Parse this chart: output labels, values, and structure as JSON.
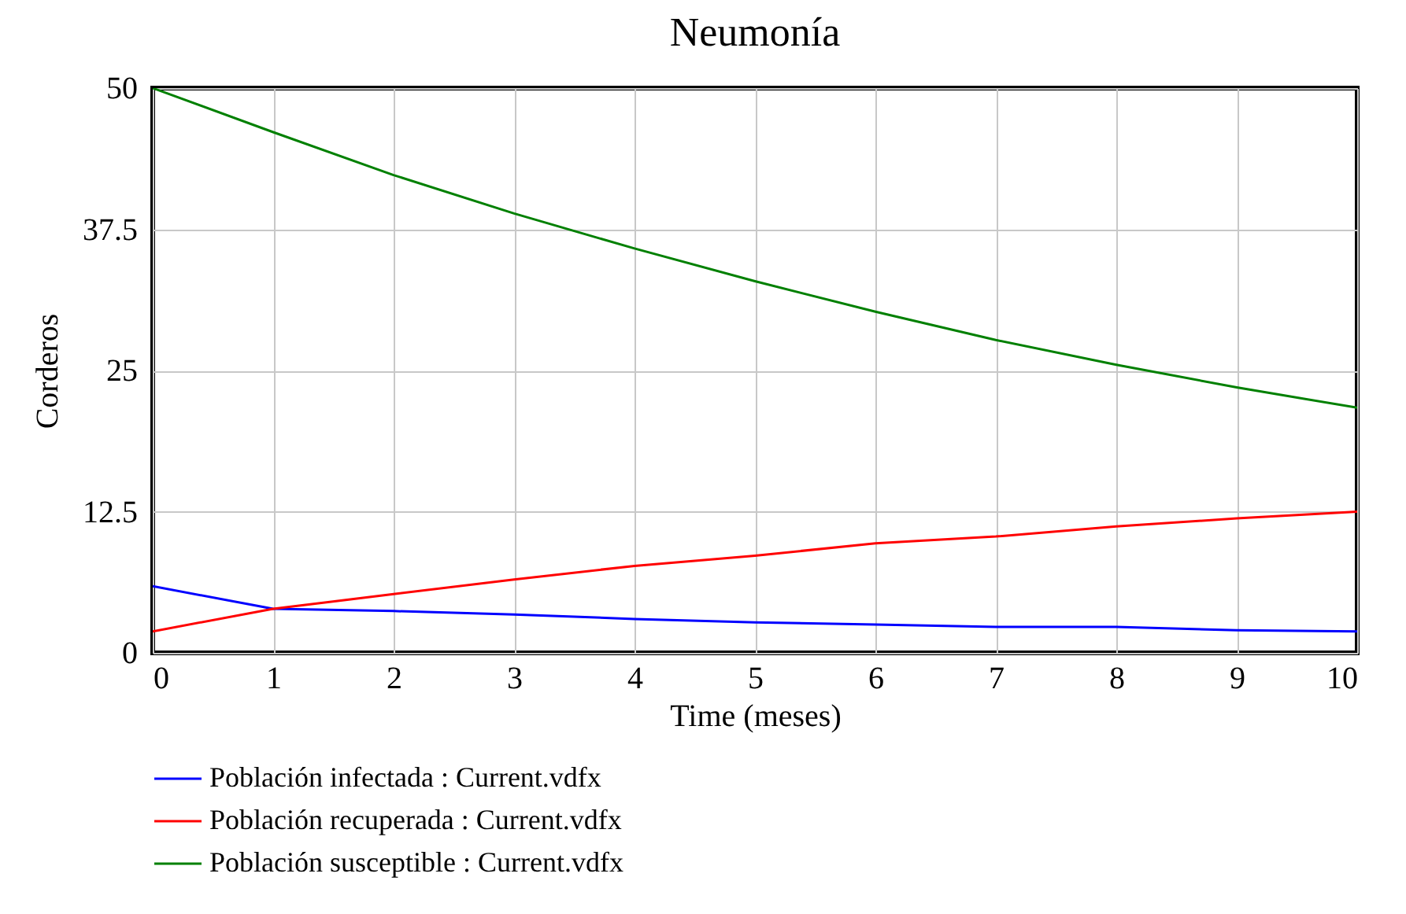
{
  "chart_data": {
    "type": "line",
    "title": "Neumonía",
    "xlabel": "Time (meses)",
    "ylabel": "Corderos",
    "x": [
      0,
      1,
      2,
      3,
      4,
      5,
      6,
      7,
      8,
      9,
      10
    ],
    "xlim": [
      0,
      10
    ],
    "xticks": [
      0,
      1,
      2,
      3,
      4,
      5,
      6,
      7,
      8,
      9,
      10
    ],
    "ylim": [
      0,
      50
    ],
    "yticks": [
      0,
      12.5,
      25,
      37.5,
      50
    ],
    "grid": true,
    "legend": "bottom",
    "line_style": "solid",
    "series": [
      {
        "name": "Población infectada : Current.vdfx",
        "color": "#0000ff",
        "values": [
          5.9,
          3.9,
          3.7,
          3.4,
          3.0,
          2.7,
          2.5,
          2.3,
          2.3,
          2.0,
          1.9
        ]
      },
      {
        "name": "Población recuperada : Current.vdfx",
        "color": "#ff0000",
        "values": [
          1.9,
          3.9,
          5.2,
          6.5,
          7.7,
          8.6,
          9.7,
          10.3,
          11.2,
          11.9,
          12.5
        ]
      },
      {
        "name": "Población susceptible : Current.vdfx",
        "color": "#008000",
        "values": [
          50,
          46.1,
          42.3,
          38.9,
          35.8,
          32.9,
          30.2,
          27.7,
          25.5,
          23.5,
          21.7
        ]
      }
    ]
  }
}
